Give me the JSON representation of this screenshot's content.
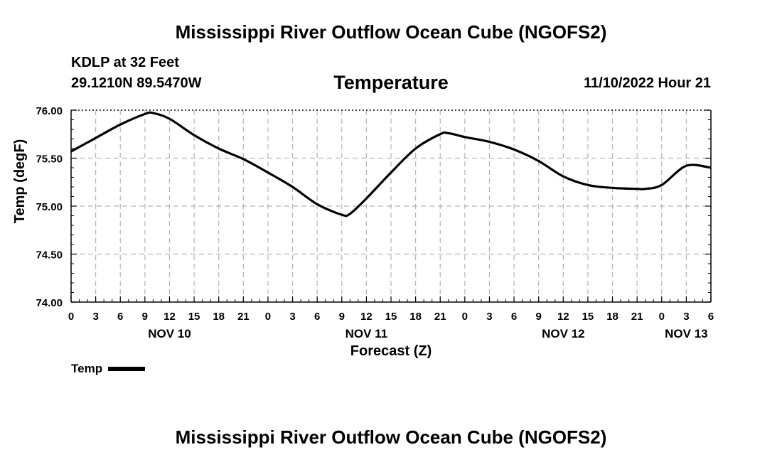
{
  "page": {
    "title": "Mississippi River Outflow Ocean Cube (NGOFS2)",
    "station": "KDLP at 32 Feet",
    "coords": "29.1210N  89.5470W",
    "variable": "Temperature",
    "timestamp": "11/10/2022 Hour 21",
    "footer_title": "Mississippi River Outflow Ocean Cube (NGOFS2)"
  },
  "legend": {
    "label": "Temp"
  },
  "colors": {
    "line": "#000000",
    "grid": "#b4b4b4"
  },
  "chart_data": {
    "type": "line",
    "title": "Temperature",
    "xlabel": "Forecast (Z)",
    "ylabel": "Temp (degF)",
    "ylim": [
      74.0,
      76.0
    ],
    "yticks": [
      "74.00",
      "74.50",
      "75.00",
      "75.50",
      "76.00"
    ],
    "xlim": [
      0,
      78
    ],
    "xtick_labels": [
      "0",
      "3",
      "6",
      "9",
      "12",
      "15",
      "18",
      "21",
      "0",
      "3",
      "6",
      "9",
      "12",
      "15",
      "18",
      "21",
      "0",
      "3",
      "6",
      "9",
      "12",
      "15",
      "18",
      "21",
      "0",
      "3",
      "6"
    ],
    "day_labels": [
      {
        "label": "NOV 10",
        "hour": 12
      },
      {
        "label": "NOV 11",
        "hour": 36
      },
      {
        "label": "NOV 12",
        "hour": 60
      },
      {
        "label": "NOV 13",
        "hour": 75
      }
    ],
    "grid": true,
    "series": [
      {
        "name": "Temp",
        "x": [
          0,
          3,
          6,
          9,
          10,
          12,
          15,
          18,
          21,
          24,
          27,
          30,
          33,
          34,
          36,
          39,
          42,
          45,
          46,
          48,
          51,
          54,
          57,
          60,
          63,
          66,
          69,
          70,
          72,
          75,
          78
        ],
        "values": [
          75.57,
          75.71,
          75.85,
          75.96,
          75.97,
          75.91,
          75.74,
          75.6,
          75.49,
          75.35,
          75.2,
          75.02,
          74.91,
          74.92,
          75.08,
          75.35,
          75.6,
          75.75,
          75.76,
          75.72,
          75.67,
          75.59,
          75.47,
          75.31,
          75.22,
          75.19,
          75.18,
          75.18,
          75.22,
          75.42,
          75.4
        ]
      }
    ]
  }
}
